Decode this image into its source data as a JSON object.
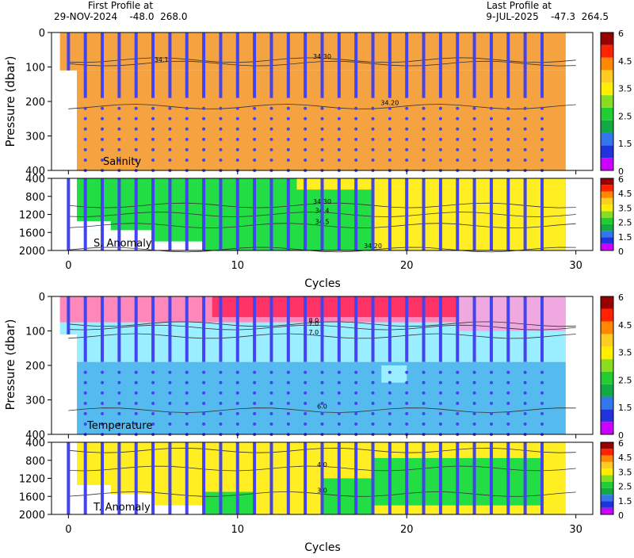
{
  "header": {
    "first_profile_label": "First Profile at",
    "first_profile_info": "29-NOV-2024    -48.0  268.0",
    "last_profile_label": "Last Profile at",
    "last_profile_info": "9-JUL-2025    -47.3  264.5"
  },
  "colors": {
    "colorbar": [
      "#cc00ff",
      "#2233dd",
      "#3377ee",
      "#11aa44",
      "#22cc33",
      "#88dd22",
      "#ffee00",
      "#ffcc22",
      "#ff8800",
      "#ff2200",
      "#990000"
    ],
    "salinity_fill": "#f5a340",
    "anomaly_green": "#22dd44",
    "anomaly_yellow": "#ffee22",
    "temp_pink": "#ff88bb",
    "temp_red": "#ff3366",
    "temp_lightpink": "#f0a8e0",
    "temp_cyan": "#99eeff",
    "temp_blue": "#55bbee",
    "profile_line": "#4444ee",
    "contour": "#333333"
  },
  "chart_data": [
    {
      "type": "heatmap",
      "title": "Salinity",
      "ylabel": "Pressure (dbar)",
      "xlim": [
        -1,
        31
      ],
      "ylim": [
        400,
        0
      ],
      "yticks": [
        "0",
        "100",
        "200",
        "300",
        "400"
      ],
      "colorbar_ticks": [
        "6",
        "4.5",
        "3.5",
        "2.5",
        "1.5",
        "0"
      ],
      "contours": [
        {
          "label": "34.1",
          "depth": 90
        },
        {
          "label": "34.30",
          "depth": 80
        },
        {
          "label": "34.20",
          "depth": 215
        }
      ]
    },
    {
      "type": "heatmap",
      "title": "S. Anomaly",
      "xlabel": "Cycles",
      "xlim": [
        -1,
        31
      ],
      "ylim": [
        2000,
        400
      ],
      "xticks": [
        "0",
        "10",
        "20",
        "30"
      ],
      "yticks": [
        "400",
        "800",
        "1200",
        "1600",
        "2000"
      ],
      "colorbar_ticks": [
        "6",
        "4.5",
        "3.5",
        "2.5",
        "1.5",
        "0"
      ],
      "contours": [
        {
          "label": "34.30",
          "depth": 1000
        },
        {
          "label": "34.4",
          "depth": 1200
        },
        {
          "label": "34.5",
          "depth": 1450
        },
        {
          "label": "34.20",
          "depth": 1980
        }
      ]
    },
    {
      "type": "heatmap",
      "title": "Temperature",
      "ylabel": "Pressure (dbar)",
      "xlim": [
        -1,
        31
      ],
      "ylim": [
        400,
        0
      ],
      "yticks": [
        "0",
        "100",
        "200",
        "300",
        "400"
      ],
      "colorbar_ticks": [
        "6",
        "4.5",
        "3.5",
        "2.5",
        "1.5",
        "0"
      ],
      "contours": [
        {
          "label": "8.0",
          "depth": 80
        },
        {
          "label": "7.0",
          "depth": 90
        },
        {
          "label": "7.0",
          "depth": 115
        },
        {
          "label": "6.0",
          "depth": 330
        }
      ]
    },
    {
      "type": "heatmap",
      "title": "T. Anomaly",
      "xlabel": "Cycles",
      "xlim": [
        -1,
        31
      ],
      "ylim": [
        2000,
        400
      ],
      "xticks": [
        "0",
        "10",
        "20",
        "30"
      ],
      "yticks": [
        "400",
        "800",
        "1200",
        "1600",
        "2000"
      ],
      "colorbar_ticks": [
        "6",
        "4.5",
        "3.5",
        "2.5",
        "1.5",
        "0"
      ],
      "contours": [
        {
          "label": "5",
          "depth": 580
        },
        {
          "label": "4.0",
          "depth": 980
        },
        {
          "label": "3.0",
          "depth": 1550
        }
      ]
    }
  ]
}
